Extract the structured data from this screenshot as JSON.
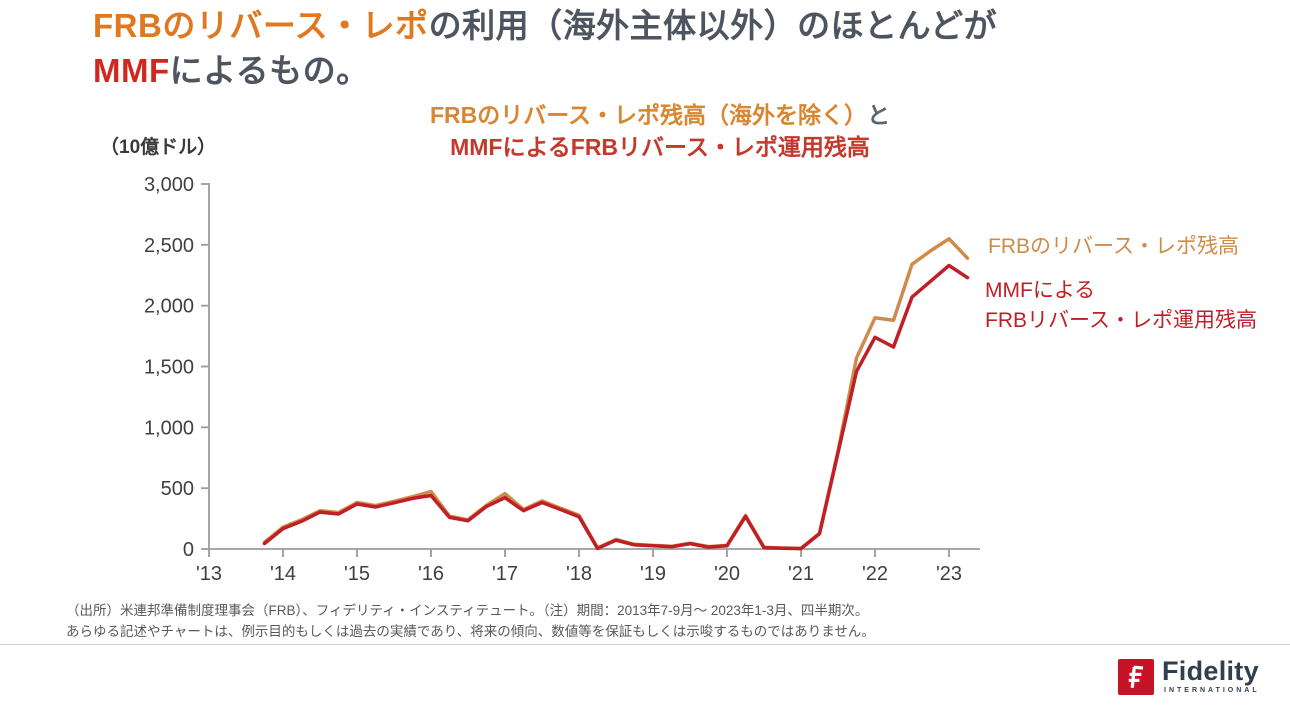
{
  "title": {
    "line1": [
      {
        "text": "FRBのリバース・レポ",
        "color": "title_orange"
      },
      {
        "text": "の利用（海外主体以外）のほとんどが",
        "color": "title_dark"
      }
    ],
    "line2": [
      {
        "text": "MMF",
        "color": "title_red"
      },
      {
        "text": "によるもの。",
        "color": "title_dark"
      }
    ]
  },
  "subtitle": {
    "line1": [
      {
        "text": "FRBのリバース・レポ残高（海外を除く）",
        "color": "subtitle_orange"
      },
      {
        "text": "と",
        "color": "subtitle_gray"
      }
    ],
    "line2": [
      {
        "text": "MMFによるFRBリバース・レポ運用残高",
        "color": "subtitle_red"
      }
    ]
  },
  "chart_data": {
    "type": "line",
    "title": "FRBのリバース・レポ残高（海外を除く）とMMFによるFRBリバース・レポ運用残高",
    "unit_label": "（10億ドル）",
    "ylabel": "10億ドル",
    "ylim": [
      0,
      3000
    ],
    "yticks": [
      0,
      500,
      1000,
      1500,
      2000,
      2500,
      3000
    ],
    "ytick_labels": [
      "0",
      "500",
      "1,000",
      "1,500",
      "2,000",
      "2,500",
      "3,000"
    ],
    "xtick_labels": [
      "'13",
      "'14",
      "'15",
      "'16",
      "'17",
      "'18",
      "'19",
      "'20",
      "'21",
      "'22",
      "'23"
    ],
    "x_quarters": [
      "2013Q3",
      "2013Q4",
      "2014Q1",
      "2014Q2",
      "2014Q3",
      "2014Q4",
      "2015Q1",
      "2015Q2",
      "2015Q3",
      "2015Q4",
      "2016Q1",
      "2016Q2",
      "2016Q3",
      "2016Q4",
      "2017Q1",
      "2017Q2",
      "2017Q3",
      "2017Q4",
      "2018Q1",
      "2018Q2",
      "2018Q3",
      "2018Q4",
      "2019Q1",
      "2019Q2",
      "2019Q3",
      "2019Q4",
      "2020Q1",
      "2020Q2",
      "2020Q3",
      "2020Q4",
      "2021Q1",
      "2021Q2",
      "2021Q3",
      "2021Q4",
      "2022Q1",
      "2022Q2",
      "2022Q3",
      "2022Q4",
      "2023Q1"
    ],
    "grid": false,
    "legend_position": "right-of-line-ends",
    "series": [
      {
        "name": "FRBのリバース・レポ残高",
        "color": "line_orange",
        "values": [
          55,
          180,
          240,
          315,
          300,
          382,
          357,
          392,
          430,
          473,
          270,
          240,
          360,
          455,
          325,
          395,
          335,
          278,
          8,
          78,
          38,
          30,
          22,
          48,
          20,
          30,
          275,
          14,
          8,
          5,
          130,
          805,
          1570,
          1900,
          1880,
          2340,
          2450,
          2550,
          2390
        ]
      },
      {
        "name": "MMFによるFRBリバース・レポ運用残高",
        "color": "line_red",
        "values": [
          45,
          168,
          228,
          303,
          288,
          370,
          345,
          380,
          416,
          440,
          260,
          232,
          350,
          422,
          315,
          382,
          325,
          265,
          5,
          72,
          34,
          26,
          18,
          44,
          16,
          26,
          268,
          11,
          6,
          3,
          125,
          790,
          1460,
          1740,
          1660,
          2070,
          2200,
          2330,
          2230
        ]
      }
    ],
    "legend": [
      {
        "text": "FRBのリバース・レポ残高",
        "color": "line_orange"
      },
      {
        "text": "MMFによる\nFRBリバース・レポ運用残高",
        "color": "line_red"
      }
    ]
  },
  "source": {
    "line1": "（出所）米連邦準備制度理事会（FRB）、フィデリティ・インスティテュート。（注）期間：2013年7-9月～ 2023年1-3月、四半期次。",
    "line2": "あらゆる記述やチャートは、例示目的もしくは過去の実績であり、将来の傾向、数値等を保証もしくは示唆するものではありません。"
  },
  "logo": {
    "brand": "Fidelity",
    "sub": "INTERNATIONAL"
  },
  "colors": {
    "title_orange": "#E07820",
    "title_dark": "#4E5560",
    "title_red": "#D0281E",
    "subtitle_orange": "#D8862F",
    "subtitle_gray": "#5A6670",
    "subtitle_red": "#C5392C",
    "line_orange": "#CE8B4A",
    "line_red": "#C01F26",
    "axis": "#9B9B9B",
    "tick_label": "#404040",
    "unit_label": "#3A3A3A",
    "source_text": "#595959",
    "divider": "#CFCFCF",
    "logo_red": "#C41425",
    "logo_navy": "#31404E"
  }
}
